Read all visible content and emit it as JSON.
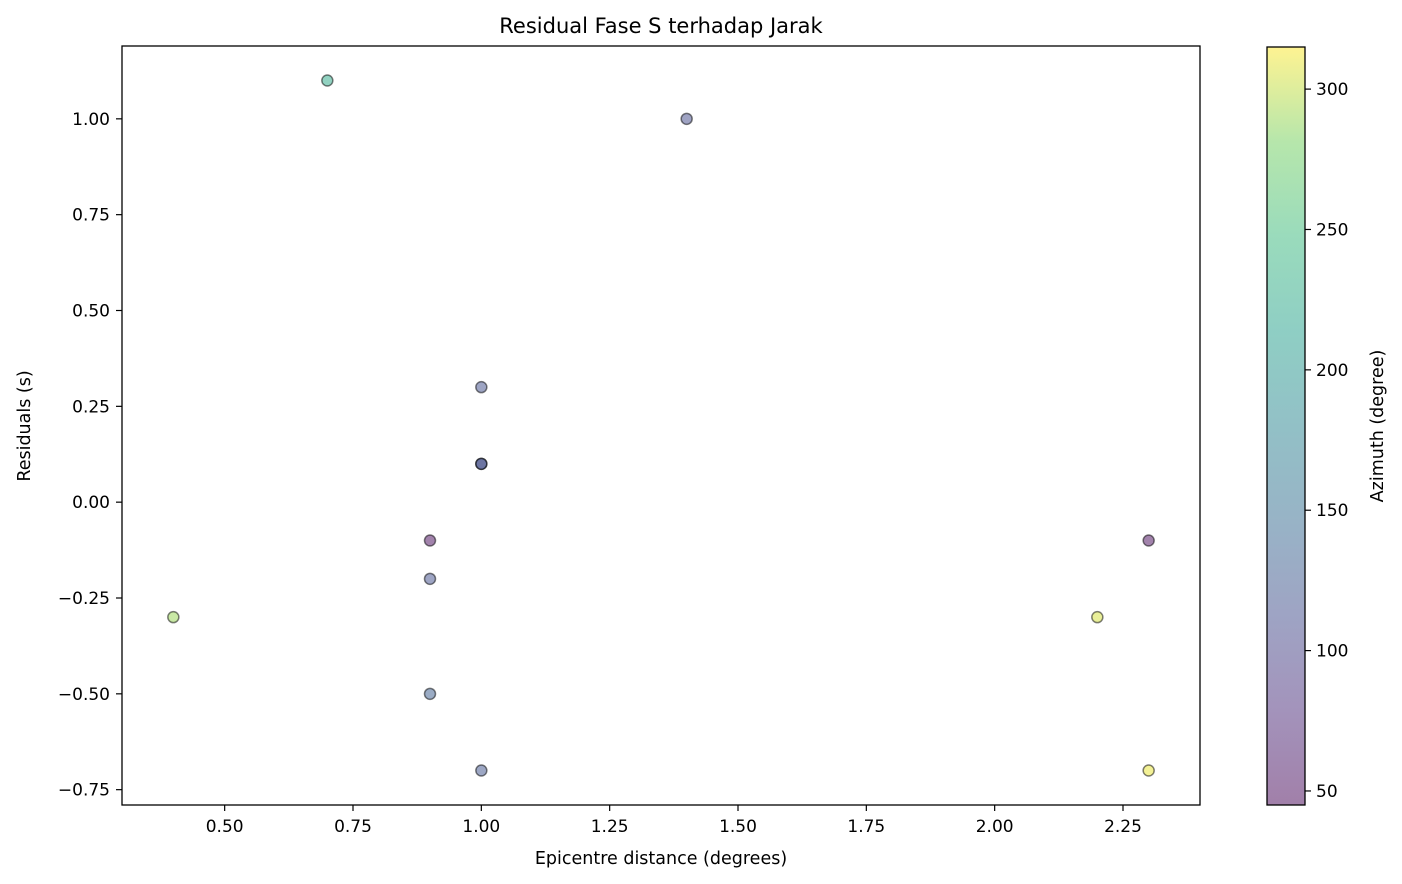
{
  "chart_data": {
    "type": "scatter",
    "title": "Residual Fase S terhadap Jarak",
    "xlabel": "Epicentre distance (degrees)",
    "ylabel": "Residuals (s)",
    "xlim": [
      0.3,
      2.4
    ],
    "ylim": [
      -0.79,
      1.19
    ],
    "xticks": [
      0.5,
      0.75,
      1.0,
      1.25,
      1.5,
      1.75,
      2.0,
      2.25
    ],
    "xtick_labels": [
      "0.50",
      "0.75",
      "1.00",
      "1.25",
      "1.50",
      "1.75",
      "2.00",
      "2.25"
    ],
    "yticks": [
      1.0,
      0.75,
      0.5,
      0.25,
      0.0,
      -0.25,
      -0.5,
      -0.75
    ],
    "ytick_labels": [
      "1.00",
      "0.75",
      "0.50",
      "0.25",
      "0.00",
      "−0.25",
      "−0.50",
      "−0.75"
    ],
    "colorbar": {
      "label": "Azimuth (degree)",
      "colormap": "viridis",
      "range": [
        45,
        315
      ],
      "ticks": [
        300,
        250,
        200,
        150,
        100,
        50
      ],
      "tick_labels": [
        "300",
        "250",
        "200",
        "150",
        "100",
        "50"
      ]
    },
    "grid": false,
    "marker_alpha": 0.5,
    "points": [
      {
        "x": 0.7,
        "y": 1.1,
        "azimuth": 225
      },
      {
        "x": 1.4,
        "y": 1.0,
        "azimuth": 110
      },
      {
        "x": 1.0,
        "y": 0.3,
        "azimuth": 115
      },
      {
        "x": 1.0,
        "y": 0.1,
        "azimuth": 75
      },
      {
        "x": 1.0,
        "y": 0.1,
        "azimuth": 130
      },
      {
        "x": 0.9,
        "y": -0.1,
        "azimuth": 50
      },
      {
        "x": 2.3,
        "y": -0.1,
        "azimuth": 50
      },
      {
        "x": 0.9,
        "y": -0.2,
        "azimuth": 115
      },
      {
        "x": 0.4,
        "y": -0.3,
        "azimuth": 290
      },
      {
        "x": 2.2,
        "y": -0.3,
        "azimuth": 305
      },
      {
        "x": 0.9,
        "y": -0.5,
        "azimuth": 130
      },
      {
        "x": 1.0,
        "y": -0.7,
        "azimuth": 120
      },
      {
        "x": 2.3,
        "y": -0.7,
        "azimuth": 310
      }
    ]
  }
}
